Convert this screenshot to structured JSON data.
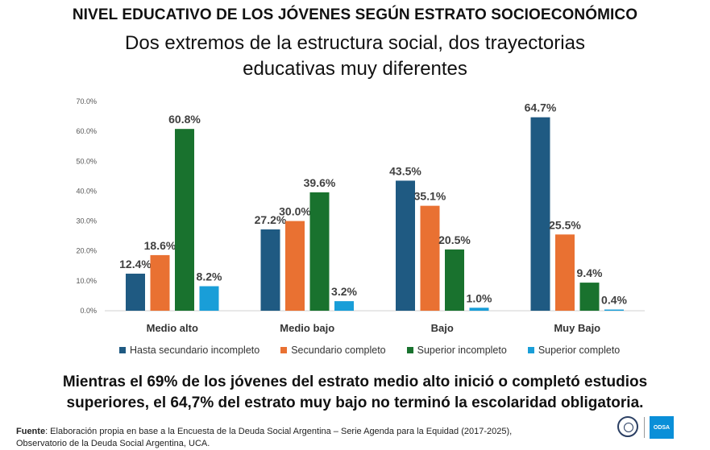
{
  "title": "NIVEL EDUCATIVO DE LOS JÓVENES SEGÚN ESTRATO SOCIOECONÓMICO",
  "subtitle_line1": "Dos extremos de la estructura social, dos trayectorias",
  "subtitle_line2": "educativas muy diferentes",
  "chart_data": {
    "type": "bar",
    "categories": [
      "Medio alto",
      "Medio bajo",
      "Bajo",
      "Muy Bajo"
    ],
    "series": [
      {
        "name": "Hasta secundario incompleto",
        "color": "#1f5a82",
        "values": [
          12.4,
          27.2,
          43.5,
          64.7
        ],
        "labels": [
          "12.4%",
          "27.2%",
          "43.5%",
          "64.7%"
        ]
      },
      {
        "name": "Secundario completo",
        "color": "#e97132",
        "values": [
          18.6,
          30.0,
          35.1,
          25.5
        ],
        "labels": [
          "18.6%",
          "30.0%",
          "35.1%",
          "25.5%"
        ]
      },
      {
        "name": "Superior incompleto",
        "color": "#19722e",
        "values": [
          60.8,
          39.6,
          20.5,
          9.4
        ],
        "labels": [
          "60.8%",
          "39.6%",
          "20.5%",
          "9.4%"
        ]
      },
      {
        "name": "Superior completo",
        "color": "#199ed8",
        "values": [
          8.2,
          3.2,
          1.0,
          0.4
        ],
        "labels": [
          "8.2%",
          "3.2%",
          "1.0%",
          "0.4%"
        ]
      }
    ],
    "ylim": [
      0,
      70
    ],
    "yticks": [
      0,
      10,
      20,
      30,
      40,
      50,
      60,
      70
    ],
    "ytick_labels": [
      "0.0%",
      "10.0%",
      "20.0%",
      "30.0%",
      "40.0%",
      "50.0%",
      "60.0%",
      "70.0%"
    ],
    "grid": false,
    "legend_position": "bottom"
  },
  "conclusion_line1": "Mientras el 69% de los jóvenes del estrato medio alto inició o completó estudios",
  "conclusion_line2": "superiores, el 64,7% del estrato muy bajo no terminó la escolaridad obligatoria.",
  "source_label": "Fuente",
  "source_line1": ": Elaboración propia en base a la Encuesta de la Deuda Social Argentina – Serie Agenda para la Equidad (2017-2025),",
  "source_line2": "Observatorio de la Deuda Social Argentina, UCA.",
  "logo_odsa_text": "ODSA"
}
